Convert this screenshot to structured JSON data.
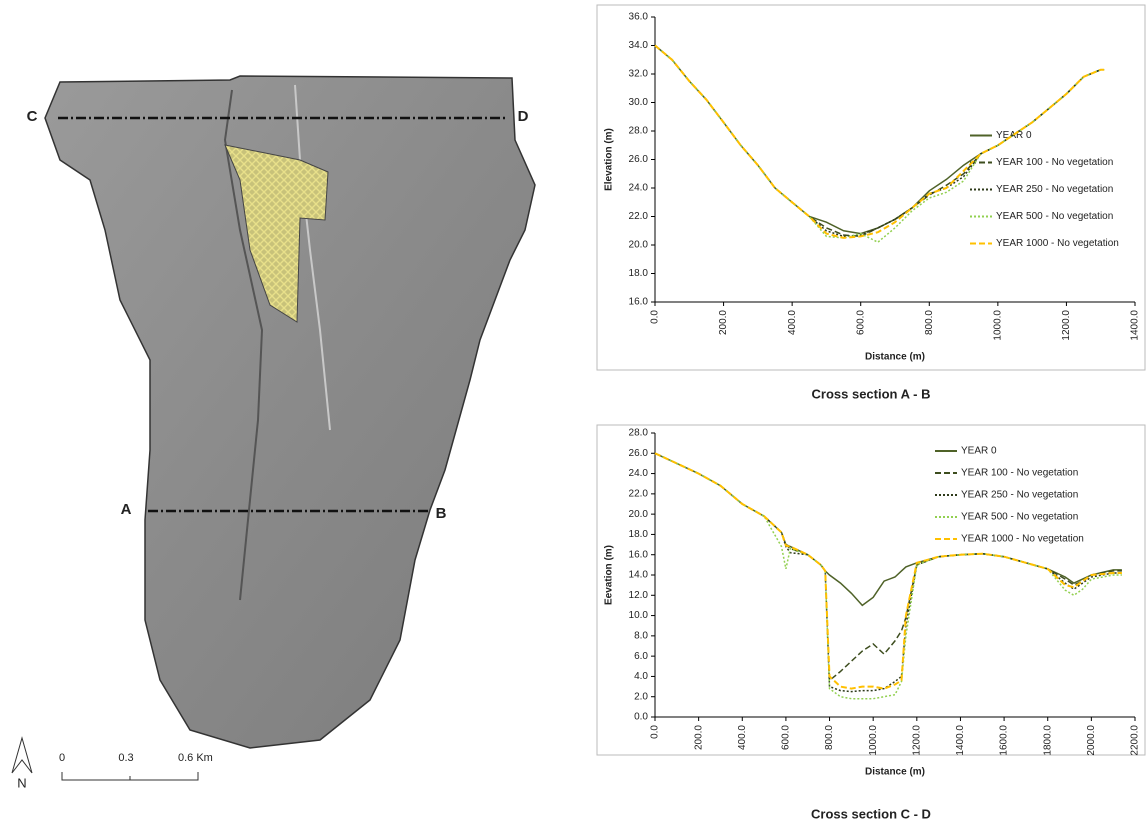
{
  "map": {
    "section_labels": [
      "A",
      "B",
      "C",
      "D"
    ],
    "north": "N",
    "scale_labels": [
      "0",
      "0.3",
      "0.6 Km"
    ]
  },
  "chart_data": [
    {
      "type": "line",
      "title": "Cross section A - B",
      "xlabel": "Distance (m)",
      "ylabel": "Elevation (m)",
      "legend": "right",
      "x": [
        0,
        50,
        100,
        150,
        200,
        250,
        300,
        350,
        400,
        450,
        500,
        550,
        600,
        650,
        700,
        750,
        800,
        850,
        900,
        950,
        1000,
        1050,
        1100,
        1150,
        1200,
        1250,
        1300,
        1310
      ],
      "xlim": [
        0,
        1400
      ],
      "xticks": [
        {
          "value": 0,
          "label": "0.0"
        },
        {
          "value": 200,
          "label": "200.0"
        },
        {
          "value": 400,
          "label": "400.0"
        },
        {
          "value": 600,
          "label": "600.0"
        },
        {
          "value": 800,
          "label": "800.0"
        },
        {
          "value": 1000,
          "label": "1000.0"
        },
        {
          "value": 1200,
          "label": "1200.0"
        },
        {
          "value": 1400,
          "label": "1400.0"
        }
      ],
      "ylim": [
        16,
        36
      ],
      "yticks": [
        {
          "value": 16,
          "label": "16.0"
        },
        {
          "value": 18,
          "label": "18.0"
        },
        {
          "value": 20,
          "label": "20.0"
        },
        {
          "value": 22,
          "label": "22.0"
        },
        {
          "value": 24,
          "label": "24.0"
        },
        {
          "value": 26,
          "label": "26.0"
        },
        {
          "value": 28,
          "label": "28.0"
        },
        {
          "value": 30,
          "label": "30.0"
        },
        {
          "value": 32,
          "label": "32.0"
        },
        {
          "value": 34,
          "label": "34.0"
        },
        {
          "value": 36,
          "label": "36.0"
        }
      ],
      "series": [
        {
          "name": "YEAR 0",
          "color": "#4f6228",
          "dash": "solid",
          "values": [
            34,
            33,
            31.5,
            30.2,
            28.6,
            27,
            25.6,
            24,
            23,
            22,
            21.6,
            21,
            20.8,
            21.2,
            21.8,
            22.6,
            23.8,
            24.6,
            25.6,
            26.4,
            27,
            27.8,
            28.6,
            29.6,
            30.6,
            31.8,
            32.3,
            32.3
          ]
        },
        {
          "name": "YEAR 100 - No vegetation",
          "color": "#3d4d1e",
          "dash": "dashed",
          "values": [
            34,
            33,
            31.5,
            30.2,
            28.6,
            27,
            25.6,
            24,
            23,
            22,
            21.2,
            20.7,
            20.6,
            21.2,
            21.8,
            22.6,
            23.5,
            24.2,
            25,
            26.4,
            27,
            27.8,
            28.6,
            29.6,
            30.6,
            31.8,
            32.3,
            32.3
          ]
        },
        {
          "name": "YEAR 250 - No vegetation",
          "color": "#2e3a1a",
          "dash": "dotted",
          "values": [
            34,
            33,
            31.5,
            30.2,
            28.6,
            27,
            25.6,
            24,
            23,
            22,
            21,
            20.6,
            20.7,
            21.2,
            21.8,
            22.6,
            23.6,
            24,
            24.8,
            26.4,
            27,
            27.8,
            28.6,
            29.6,
            30.6,
            31.8,
            32.3,
            32.3
          ]
        },
        {
          "name": "YEAR 500 - No vegetation",
          "color": "#92d050",
          "dash": "dotted",
          "values": [
            34,
            33,
            31.5,
            30.2,
            28.6,
            27,
            25.6,
            24,
            23,
            22,
            20.6,
            20.5,
            20.8,
            20.2,
            21.2,
            22.4,
            23.3,
            23.7,
            24.5,
            26.4,
            27,
            27.8,
            28.6,
            29.6,
            30.6,
            31.8,
            32.3,
            32.3
          ]
        },
        {
          "name": "YEAR 1000 - No vegetation",
          "color": "#ffc000",
          "dash": "dashed",
          "values": [
            34,
            33,
            31.5,
            30.2,
            28.6,
            27,
            25.6,
            24,
            23,
            22,
            20.8,
            20.5,
            20.6,
            20.9,
            21.6,
            22.6,
            23.6,
            24,
            25.2,
            26.4,
            27,
            27.8,
            28.6,
            29.6,
            30.6,
            31.8,
            32.3,
            32.3
          ]
        }
      ]
    },
    {
      "type": "line",
      "title": "Cross section  C - D",
      "xlabel": "Distance (m)",
      "ylabel": "Eevation (m)",
      "legend": "upper right",
      "x": [
        0,
        100,
        200,
        300,
        400,
        500,
        580,
        600,
        620,
        700,
        760,
        780,
        800,
        850,
        900,
        950,
        1000,
        1050,
        1100,
        1130,
        1150,
        1200,
        1300,
        1400,
        1500,
        1600,
        1700,
        1800,
        1880,
        1920,
        1960,
        2000,
        2100,
        2140
      ],
      "xlim": [
        0,
        2200
      ],
      "xticks": [
        {
          "value": 0,
          "label": "0.0"
        },
        {
          "value": 200,
          "label": "200.0"
        },
        {
          "value": 400,
          "label": "400.0"
        },
        {
          "value": 600,
          "label": "600.0"
        },
        {
          "value": 800,
          "label": "800.0"
        },
        {
          "value": 1000,
          "label": "1000.0"
        },
        {
          "value": 1200,
          "label": "1200.0"
        },
        {
          "value": 1400,
          "label": "1400.0"
        },
        {
          "value": 1600,
          "label": "1600.0"
        },
        {
          "value": 1800,
          "label": "1800.0"
        },
        {
          "value": 2000,
          "label": "2000.0"
        },
        {
          "value": 2200,
          "label": "2200.0"
        }
      ],
      "ylim": [
        0,
        28
      ],
      "yticks": [
        {
          "value": 0,
          "label": "0.0"
        },
        {
          "value": 2,
          "label": "2.0"
        },
        {
          "value": 4,
          "label": "4.0"
        },
        {
          "value": 6,
          "label": "6.0"
        },
        {
          "value": 8,
          "label": "8.0"
        },
        {
          "value": 10,
          "label": "10.0"
        },
        {
          "value": 12,
          "label": "12.0"
        },
        {
          "value": 14,
          "label": "14.0"
        },
        {
          "value": 16,
          "label": "16.0"
        },
        {
          "value": 18,
          "label": "18.0"
        },
        {
          "value": 20,
          "label": "20.0"
        },
        {
          "value": 22,
          "label": "22.0"
        },
        {
          "value": 24,
          "label": "24.0"
        },
        {
          "value": 26,
          "label": "26.0"
        },
        {
          "value": 28,
          "label": "28.0"
        }
      ],
      "series": [
        {
          "name": "YEAR 0",
          "color": "#4f6228",
          "dash": "solid",
          "values": [
            26,
            25,
            24,
            22.8,
            21,
            19.8,
            18.2,
            17,
            16.8,
            16,
            15,
            14.4,
            14,
            13.2,
            12.2,
            11,
            11.8,
            13.4,
            13.8,
            14.4,
            14.8,
            15.2,
            15.8,
            16,
            16.1,
            15.8,
            15.2,
            14.6,
            13.8,
            13.2,
            13.6,
            14,
            14.5,
            14.5
          ]
        },
        {
          "name": "YEAR 100 - No vegetation",
          "color": "#3d4d1e",
          "dash": "dashed",
          "values": [
            26,
            25,
            24,
            22.8,
            21,
            19.8,
            18.2,
            17,
            16.6,
            16,
            15,
            14.4,
            3.6,
            4.5,
            5.5,
            6.5,
            7.2,
            6.2,
            7.5,
            8.5,
            9.8,
            15,
            15.8,
            16,
            16.1,
            15.8,
            15.2,
            14.6,
            13.6,
            13,
            13.4,
            14,
            14.4,
            14.4
          ]
        },
        {
          "name": "YEAR 250 - No vegetation",
          "color": "#2e3a1a",
          "dash": "dotted",
          "values": [
            26,
            25,
            24,
            22.8,
            21,
            19.8,
            18.2,
            16.8,
            16.2,
            16,
            15,
            14.4,
            3,
            2.6,
            2.5,
            2.6,
            2.6,
            2.8,
            3.5,
            4,
            9,
            15,
            15.8,
            16,
            16.1,
            15.8,
            15.2,
            14.6,
            13.2,
            12.6,
            13.2,
            13.8,
            14.2,
            14.2
          ]
        },
        {
          "name": "YEAR 500 - No vegetation",
          "color": "#92d050",
          "dash": "dotted",
          "values": [
            26,
            25,
            24,
            22.8,
            21,
            19.8,
            16.8,
            14.6,
            16.6,
            16,
            15,
            14.4,
            2.8,
            2,
            1.8,
            1.8,
            1.8,
            2,
            2.2,
            3.5,
            8,
            15,
            15.8,
            16,
            16.1,
            15.8,
            15.2,
            14.6,
            12.5,
            12,
            12.6,
            13.6,
            14,
            14
          ]
        },
        {
          "name": "YEAR 1000 - No vegetation",
          "color": "#ffc000",
          "dash": "dashed",
          "values": [
            26,
            25,
            24,
            22.8,
            21,
            19.8,
            18.2,
            16.9,
            16.8,
            16,
            15,
            14.4,
            4,
            3,
            2.8,
            3,
            3,
            2.8,
            3.2,
            3.6,
            10,
            15.2,
            15.8,
            16,
            16.1,
            15.8,
            15.2,
            14.6,
            13,
            12.8,
            13.4,
            14,
            14.2,
            14.2
          ]
        }
      ]
    }
  ]
}
